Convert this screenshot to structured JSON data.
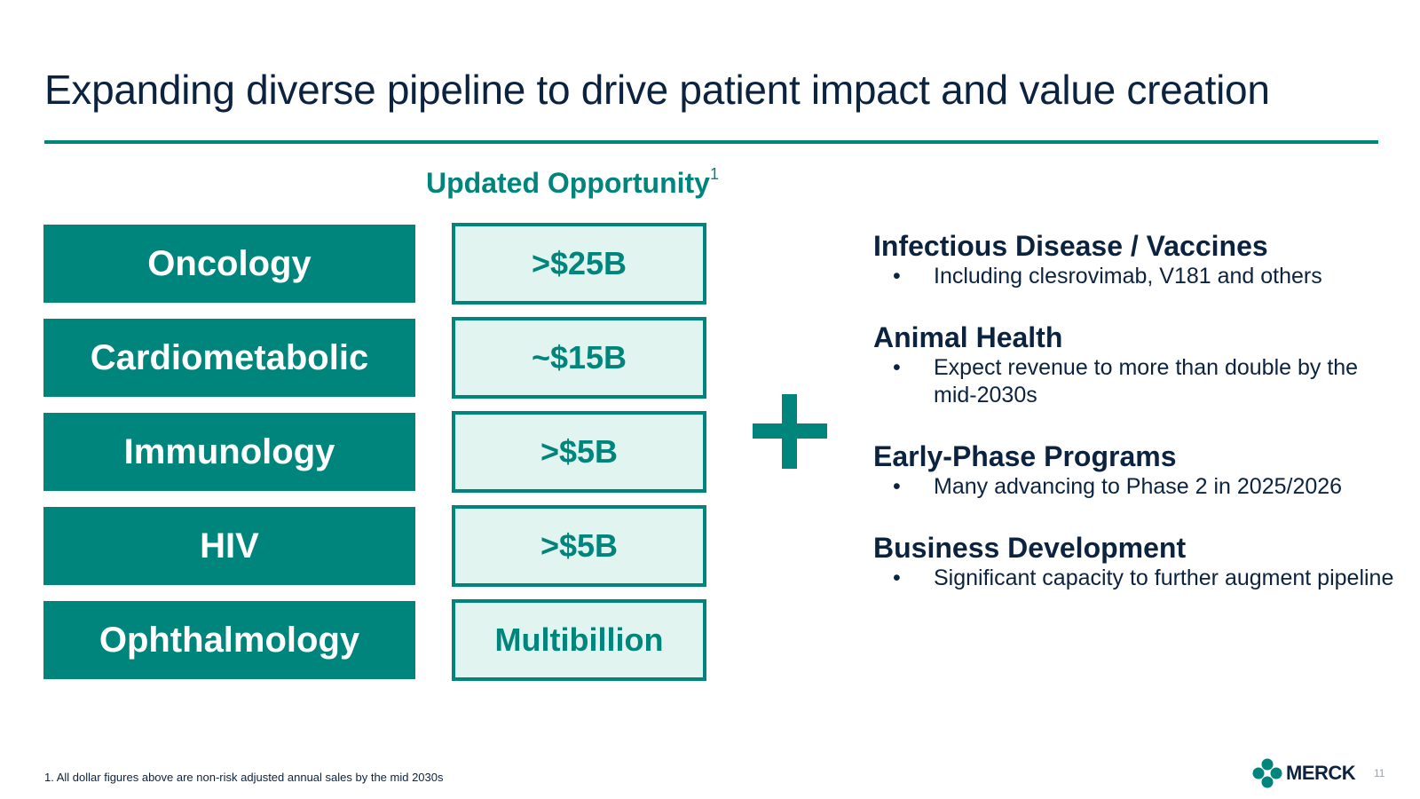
{
  "title": "Expanding diverse pipeline to drive patient impact and value creation",
  "opportunity_heading": {
    "text": "Updated Opportunity",
    "footnote_mark": "1"
  },
  "areas": [
    {
      "label": "Oncology",
      "value": ">$25B"
    },
    {
      "label": "Cardiometabolic",
      "value": "~$15B"
    },
    {
      "label": "Immunology",
      "value": ">$5B"
    },
    {
      "label": "HIV",
      "value": ">$5B"
    },
    {
      "label": "Ophthalmology",
      "value": "Multibillion"
    }
  ],
  "bullet_glyph": "•",
  "groups": [
    {
      "title": "Infectious Disease / Vaccines",
      "item": "Including clesrovimab, V181 and others"
    },
    {
      "title": "Animal Health",
      "item": "Expect revenue to more than double by the mid-2030s"
    },
    {
      "title": "Early-Phase Programs",
      "item": "Many advancing to Phase 2 in 2025/2026"
    },
    {
      "title": "Business Development",
      "item": "Significant capacity to further augment pipeline"
    }
  ],
  "footnote": "1. All dollar figures above are non-risk adjusted annual sales by the mid 2030s",
  "logo_text": "MERCK",
  "page_number": "11",
  "colors": {
    "teal": "#00857c",
    "navy": "#0c2340",
    "light_teal": "#e2f4f0"
  }
}
